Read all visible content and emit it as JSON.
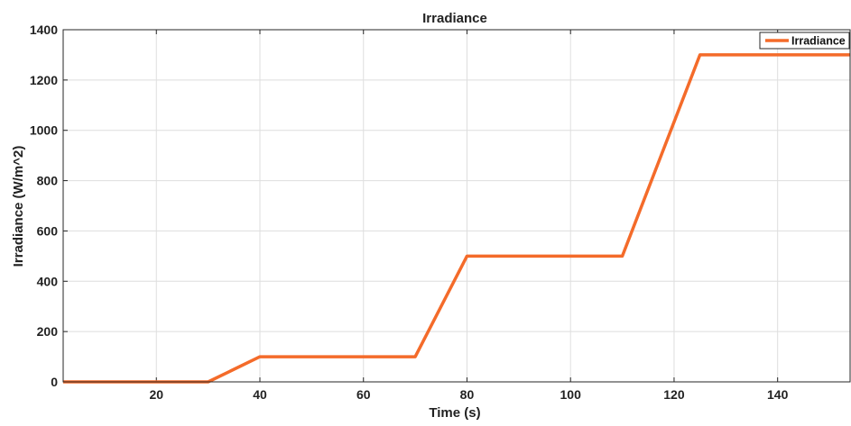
{
  "chart_data": {
    "type": "line",
    "title": "Irradiance",
    "xlabel": "Time (s)",
    "ylabel": "Irradiance (W/m^2)",
    "xlim": [
      2,
      154
    ],
    "ylim": [
      0,
      1400
    ],
    "xticks": [
      20,
      40,
      60,
      80,
      100,
      120,
      140
    ],
    "yticks": [
      0,
      200,
      400,
      600,
      800,
      1000,
      1200,
      1400
    ],
    "grid": true,
    "legend_position": "top-right",
    "series": [
      {
        "name": "Irradiance",
        "color": "#f46b2a",
        "x": [
          2,
          30,
          40,
          70,
          80,
          110,
          125,
          154
        ],
        "y": [
          0,
          0,
          100,
          100,
          500,
          500,
          1300,
          1300
        ]
      }
    ]
  }
}
